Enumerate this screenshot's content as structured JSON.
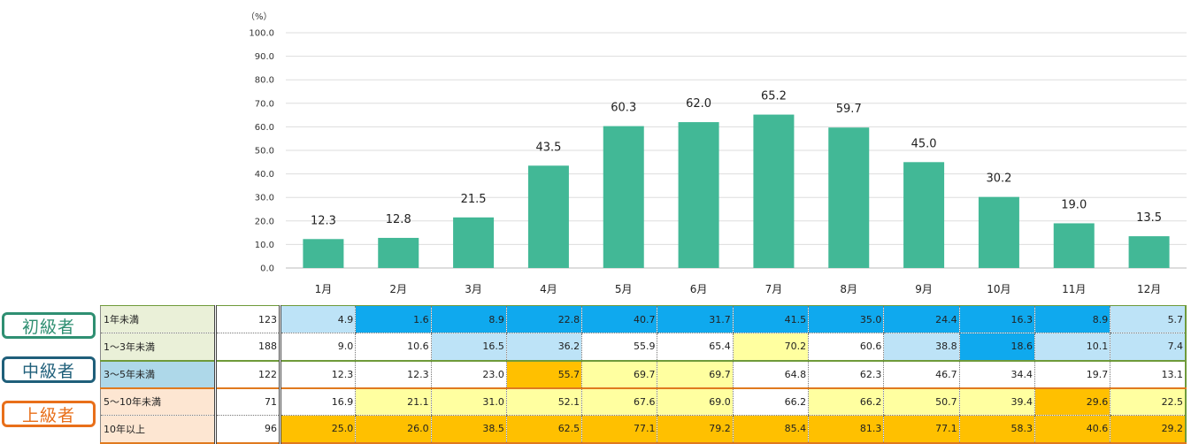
{
  "chart_data": {
    "type": "bar",
    "unit_label": "（%）",
    "categories": [
      "1月",
      "2月",
      "3月",
      "4月",
      "5月",
      "6月",
      "7月",
      "8月",
      "9月",
      "10月",
      "11月",
      "12月"
    ],
    "values": [
      12.3,
      12.8,
      21.5,
      43.5,
      60.3,
      62.0,
      65.2,
      59.7,
      45.0,
      30.2,
      19.0,
      13.5
    ],
    "yticks": [
      "0.0",
      "10.0",
      "20.0",
      "30.0",
      "40.0",
      "50.0",
      "60.0",
      "70.0",
      "80.0",
      "90.0",
      "100.0"
    ],
    "ylim": [
      0,
      100
    ],
    "bar_color": "#42b896",
    "grid": true
  },
  "levels": [
    {
      "label": "初級者",
      "color": "#2f8f72"
    },
    {
      "label": "中級者",
      "color": "#1f5f7a"
    },
    {
      "label": "上級者",
      "color": "#e86f1a"
    }
  ],
  "table": {
    "rows": [
      {
        "label": "1年未満",
        "count": "123",
        "label_bg": "#eaf0d8",
        "values": [
          "4.9",
          "1.6",
          "8.9",
          "22.8",
          "40.7",
          "31.7",
          "41.5",
          "35.0",
          "24.4",
          "16.3",
          "8.9",
          "5.7"
        ],
        "colors": [
          "#bde3f7",
          "#0fa9ee",
          "#0fa9ee",
          "#0fa9ee",
          "#0fa9ee",
          "#0fa9ee",
          "#0fa9ee",
          "#0fa9ee",
          "#0fa9ee",
          "#0fa9ee",
          "#0fa9ee",
          "#bde3f7"
        ]
      },
      {
        "label": "1～3年未満",
        "count": "188",
        "label_bg": "#eaf0d8",
        "values": [
          "9.0",
          "10.6",
          "16.5",
          "36.2",
          "55.9",
          "65.4",
          "70.2",
          "60.6",
          "38.8",
          "18.6",
          "10.1",
          "7.4"
        ],
        "colors": [
          "#ffffff",
          "#ffffff",
          "#bde3f7",
          "#bde3f7",
          "#ffffff",
          "#ffffff",
          "#ffffa0",
          "#ffffff",
          "#bde3f7",
          "#0fa9ee",
          "#bde3f7",
          "#bde3f7"
        ]
      },
      {
        "label": "3～5年未満",
        "count": "122",
        "label_bg": "#aed8e9",
        "values": [
          "12.3",
          "12.3",
          "23.0",
          "55.7",
          "69.7",
          "69.7",
          "64.8",
          "62.3",
          "46.7",
          "34.4",
          "19.7",
          "13.1"
        ],
        "colors": [
          "#ffffff",
          "#ffffff",
          "#ffffff",
          "#ffc000",
          "#ffffa0",
          "#ffffa0",
          "#ffffff",
          "#ffffff",
          "#ffffff",
          "#ffffff",
          "#ffffff",
          "#ffffff"
        ]
      },
      {
        "label": "5～10年未満",
        "count": "71",
        "label_bg": "#fde6d2",
        "values": [
          "16.9",
          "21.1",
          "31.0",
          "52.1",
          "67.6",
          "69.0",
          "66.2",
          "66.2",
          "50.7",
          "39.4",
          "29.6",
          "22.5"
        ],
        "colors": [
          "#ffffff",
          "#ffffa0",
          "#ffffa0",
          "#ffffa0",
          "#ffffa0",
          "#ffffa0",
          "#ffffff",
          "#ffffa0",
          "#ffffa0",
          "#ffffa0",
          "#ffc000",
          "#ffffa0"
        ]
      },
      {
        "label": "10年以上",
        "count": "96",
        "label_bg": "#fde6d2",
        "values": [
          "25.0",
          "26.0",
          "38.5",
          "62.5",
          "77.1",
          "79.2",
          "85.4",
          "81.3",
          "77.1",
          "58.3",
          "40.6",
          "29.2"
        ],
        "colors": [
          "#ffc000",
          "#ffc000",
          "#ffc000",
          "#ffc000",
          "#ffc000",
          "#ffc000",
          "#ffc000",
          "#ffc000",
          "#ffc000",
          "#ffc000",
          "#ffc000",
          "#ffc000"
        ]
      }
    ]
  }
}
